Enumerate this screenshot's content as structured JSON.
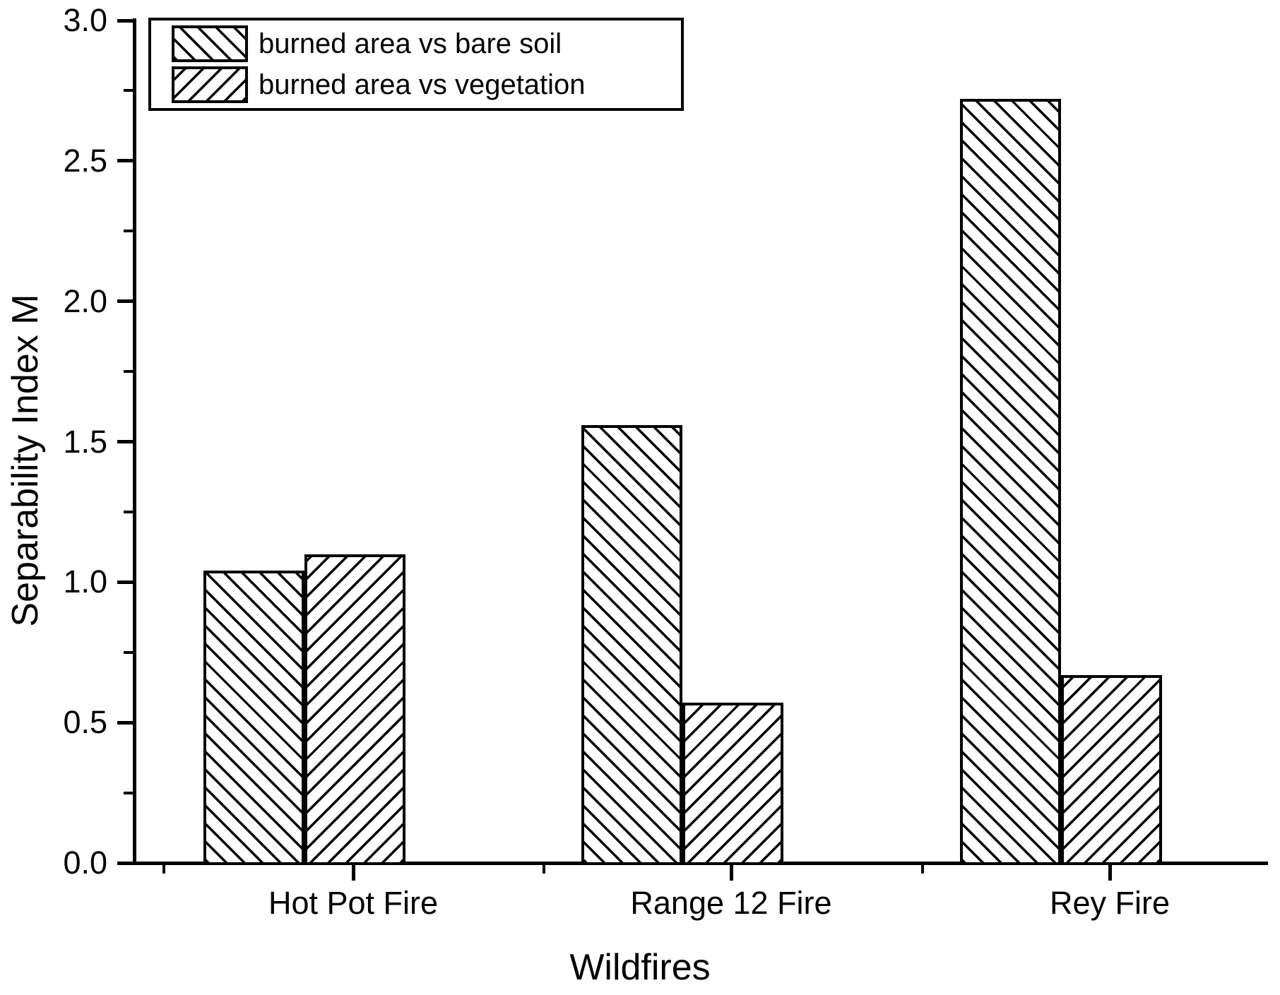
{
  "figure": {
    "background_color": "#ffffff",
    "ink_color": "#000000"
  },
  "chart_data": {
    "type": "bar",
    "title": "",
    "xlabel": "Wildfires",
    "ylabel": "Separability Index M",
    "categories": [
      "Hot Pot Fire",
      "Range 12 Fire",
      "Rey Fire"
    ],
    "series": [
      {
        "name": "burned area vs bare soil",
        "hatch": "forward-diagonal",
        "values": [
          1.04,
          1.56,
          2.72
        ]
      },
      {
        "name": "burned area vs vegetation",
        "hatch": "backward-diagonal",
        "values": [
          1.1,
          0.57,
          0.67
        ]
      }
    ],
    "ylim": [
      0.0,
      3.0
    ],
    "yticks_major": [
      0.0,
      0.5,
      1.0,
      1.5,
      2.0,
      2.5,
      3.0
    ],
    "ytick_labels": [
      "0.0",
      "0.5",
      "1.0",
      "1.5",
      "2.0",
      "2.5",
      "3.0"
    ],
    "yticks_minor": [
      0.25,
      0.75,
      1.25,
      1.75,
      2.25,
      2.75
    ],
    "grid": "off",
    "legend_position": "top-left",
    "bar_fill": "#ffffff",
    "bar_edge": "#000000"
  }
}
